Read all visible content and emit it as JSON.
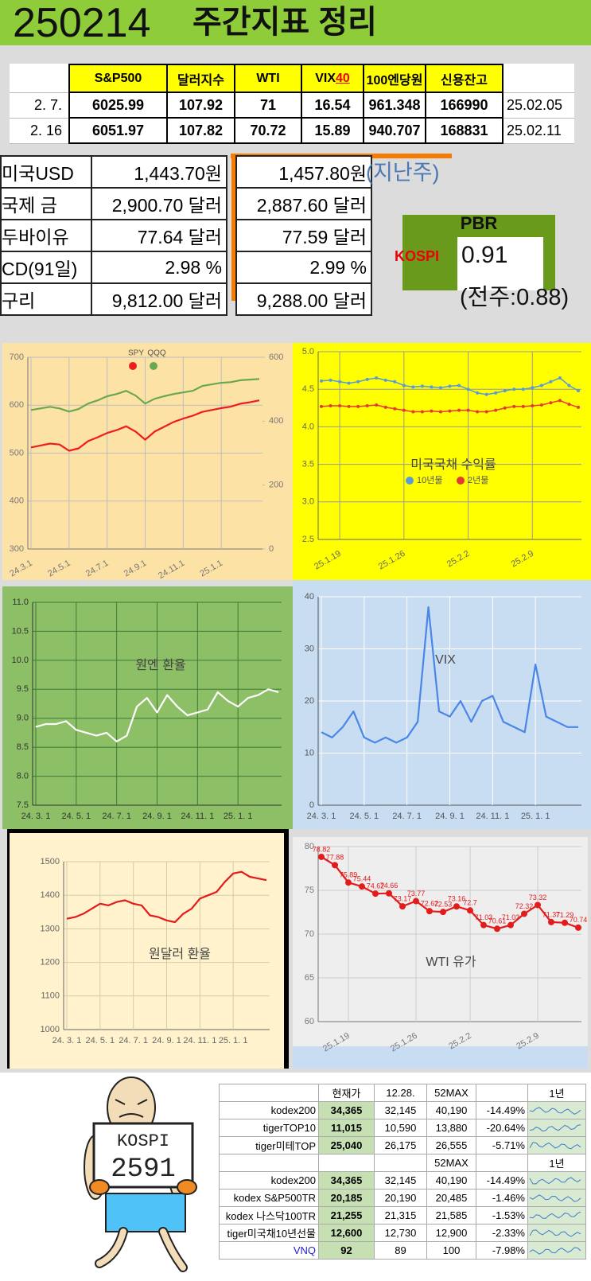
{
  "header": {
    "date": "250214",
    "title": "주간지표 정리"
  },
  "summary_table": {
    "headers": [
      "S&P500",
      "달러지수",
      "WTI",
      {
        "text": "VIX",
        "level": "40"
      },
      "100엔당원",
      "신용잔고"
    ],
    "rows": [
      {
        "label": "2. 7.",
        "cells": [
          "6025.99",
          "107.92",
          "71",
          "16.54",
          "961.348",
          "166990"
        ],
        "date": "25.02.05"
      },
      {
        "label": "2. 16",
        "cells": [
          "6051.97",
          "107.82",
          "70.72",
          "15.89",
          "940.707",
          "168831"
        ],
        "date": "25.02.11"
      }
    ]
  },
  "price_table": {
    "note": "(지난주)",
    "rows": [
      [
        "미국USD",
        "1,443.70원",
        "1,457.80원"
      ],
      [
        "국제 금",
        "2,900.70 달러",
        "2,887.60 달러"
      ],
      [
        "두바이유",
        "77.64 달러",
        "77.59 달러"
      ],
      [
        "CD(91일)",
        "2.98 %",
        "2.99 %"
      ],
      [
        "구리",
        "9,812.00 달러",
        "9,288.00 달러"
      ]
    ]
  },
  "pbr": {
    "title": "PBR",
    "index": "KOSPI",
    "value": "0.91",
    "previous": "(전주:0.88)"
  },
  "chart_data": [
    {
      "type": "line",
      "categories": [
        "24.3.1",
        null,
        null,
        null,
        "24.5.1",
        null,
        null,
        null,
        "24.7.1",
        null,
        null,
        null,
        "24.9.1",
        null,
        null,
        null,
        "24.11.1",
        null,
        null,
        null,
        "25.1.1",
        null,
        null,
        null,
        null
      ],
      "ylim": [
        300,
        700
      ],
      "yticks": [
        300,
        400,
        500,
        600,
        700
      ],
      "y2lim": [
        0,
        600
      ],
      "y2ticks": [
        0,
        200,
        400,
        600
      ],
      "grid": true,
      "series": [
        {
          "name": "SPY",
          "color": "#ee1c1c",
          "values": [
            512,
            516,
            520,
            518,
            505,
            510,
            525,
            533,
            542,
            548,
            556,
            545,
            528,
            545,
            555,
            565,
            572,
            578,
            586,
            590,
            594,
            597,
            603,
            606,
            610
          ]
        },
        {
          "name": "QQQ",
          "color": "#6aa84f",
          "axis": "y2",
          "values": [
            435,
            440,
            445,
            440,
            430,
            438,
            455,
            465,
            478,
            485,
            495,
            480,
            455,
            470,
            478,
            485,
            490,
            495,
            510,
            515,
            520,
            522,
            528,
            530,
            532
          ]
        }
      ]
    },
    {
      "type": "line",
      "title": "미국국채 수익률",
      "categories": [
        null,
        null,
        "25.1.19",
        null,
        null,
        null,
        null,
        null,
        null,
        "25.1.26",
        null,
        null,
        null,
        null,
        null,
        null,
        "25.2.2",
        null,
        null,
        null,
        null,
        null,
        null,
        "25.2.9",
        null,
        null,
        null,
        null,
        null
      ],
      "ylim": [
        2.5,
        5.0
      ],
      "yticks": [
        2.5,
        {
          "value": 3,
          "label": "3.0"
        },
        3.5,
        {
          "value": 4,
          "label": "4.0"
        },
        4.5,
        {
          "value": 5,
          "label": "5.0"
        }
      ],
      "grid": true,
      "markers": true,
      "series": [
        {
          "name": "10년물",
          "color": "#5b9bd5",
          "values": [
            4.61,
            4.62,
            4.6,
            4.58,
            4.6,
            4.63,
            4.65,
            4.62,
            4.6,
            4.55,
            4.53,
            4.54,
            4.53,
            4.52,
            4.54,
            4.55,
            4.5,
            4.45,
            4.43,
            4.45,
            4.48,
            4.5,
            4.5,
            4.52,
            4.55,
            4.6,
            4.65,
            4.55,
            4.48
          ]
        },
        {
          "name": "2년물",
          "color": "#e53935",
          "values": [
            4.27,
            4.28,
            4.28,
            4.27,
            4.27,
            4.28,
            4.29,
            4.26,
            4.24,
            4.22,
            4.2,
            4.2,
            4.21,
            4.2,
            4.21,
            4.22,
            4.22,
            4.2,
            4.2,
            4.22,
            4.25,
            4.27,
            4.27,
            4.28,
            4.29,
            4.32,
            4.35,
            4.3,
            4.26
          ]
        }
      ]
    },
    {
      "type": "line",
      "title": "원엔 환율",
      "categories": [
        "24. 3. 1",
        null,
        null,
        null,
        "24. 5. 1",
        null,
        null,
        null,
        "24. 7. 1",
        null,
        null,
        null,
        "24. 9. 1",
        null,
        null,
        null,
        "24. 11. 1",
        null,
        null,
        null,
        "25. 1. 1",
        null,
        null,
        null,
        null
      ],
      "ylim": [
        7.5,
        11.0
      ],
      "yticks": [
        7.5,
        {
          "value": 8,
          "label": "8.0"
        },
        8.5,
        {
          "value": 9,
          "label": "9.0"
        },
        9.5,
        {
          "value": 10,
          "label": "10.0"
        },
        10.5,
        {
          "value": 11,
          "label": "11.0"
        }
      ],
      "grid": true,
      "series": [
        {
          "name": "원엔",
          "color": "#ffffff",
          "values": [
            8.85,
            8.9,
            8.9,
            8.95,
            8.8,
            8.75,
            8.7,
            8.75,
            8.6,
            8.7,
            9.2,
            9.35,
            9.1,
            9.4,
            9.2,
            9.05,
            9.1,
            9.15,
            9.45,
            9.3,
            9.2,
            9.35,
            9.4,
            9.5,
            9.45
          ]
        }
      ]
    },
    {
      "type": "line",
      "title": "VIX",
      "categories": [
        "24. 3. 1",
        null,
        null,
        null,
        "24. 5. 1",
        null,
        null,
        null,
        "24. 7. 1",
        null,
        null,
        null,
        "24. 9. 1",
        null,
        null,
        null,
        "24. 11. 1",
        null,
        null,
        null,
        "25. 1. 1",
        null,
        null,
        null,
        null
      ],
      "ylim": [
        0,
        40
      ],
      "yticks": [
        0,
        10,
        20,
        30,
        40
      ],
      "grid": true,
      "series": [
        {
          "name": "VIX",
          "color": "#4a86e8",
          "values": [
            14,
            13,
            15,
            18,
            13,
            12,
            13,
            12,
            13,
            16,
            38,
            18,
            17,
            20,
            16,
            20,
            21,
            16,
            15,
            14,
            27,
            17,
            16,
            15,
            15
          ]
        }
      ]
    },
    {
      "type": "line",
      "title": "원달러 환율",
      "categories": [
        "24. 3. 1",
        null,
        null,
        null,
        "24. 5. 1",
        null,
        null,
        null,
        "24. 7. 1",
        null,
        null,
        null,
        "24. 9. 1",
        null,
        null,
        null,
        "24. 11. 1",
        null,
        null,
        null,
        "25. 1. 1",
        null,
        null,
        null,
        null
      ],
      "ylim": [
        1000,
        1500
      ],
      "yticks": [
        1000,
        1100,
        1200,
        1300,
        1400,
        1500
      ],
      "grid": true,
      "series": [
        {
          "name": "원달러",
          "color": "#e31b1b",
          "values": [
            1330,
            1335,
            1345,
            1360,
            1375,
            1370,
            1380,
            1385,
            1375,
            1370,
            1340,
            1335,
            1325,
            1320,
            1345,
            1360,
            1390,
            1400,
            1410,
            1440,
            1465,
            1470,
            1455,
            1450,
            1445
          ]
        }
      ]
    },
    {
      "type": "line",
      "title": "WTI 유가",
      "categories": [
        null,
        null,
        "25.1.19",
        null,
        null,
        null,
        null,
        "25.1.26",
        null,
        null,
        null,
        "25.2.2",
        null,
        null,
        null,
        null,
        "25.2.9",
        null,
        null,
        null
      ],
      "ylim": [
        60,
        80
      ],
      "yticks": [
        60,
        65,
        70,
        75,
        80
      ],
      "grid": true,
      "markers": true,
      "data_labels": true,
      "series": [
        {
          "name": "WTI",
          "color": "#e31b1b",
          "values": [
            78.82,
            77.88,
            75.89,
            75.44,
            74.62,
            74.66,
            73.17,
            73.77,
            72.62,
            72.53,
            73.16,
            72.7,
            71.03,
            70.61,
            71.03,
            72.32,
            73.32,
            71.37,
            71.29,
            70.74
          ]
        }
      ]
    }
  ],
  "cartoon": {
    "sign_title": "KOSPI",
    "sign_value": "2591"
  },
  "etf_table": {
    "sections": [
      {
        "header": [
          null,
          "현재가",
          "12.28.",
          "52MAX",
          null,
          "1년"
        ],
        "rows": [
          [
            "kodex200",
            "34,365",
            "32,145",
            "40,190",
            "-14.49%"
          ],
          [
            "tigerTOP10",
            "11,015",
            "10,590",
            "13,880",
            "-20.64%"
          ],
          [
            "tiger미테TOP",
            "25,040",
            "26,175",
            "26,555",
            "-5.71%"
          ]
        ]
      },
      {
        "header": [
          null,
          null,
          null,
          "52MAX",
          null,
          "1년"
        ],
        "rows": [
          [
            "kodex200",
            "34,365",
            "32,145",
            "40,190",
            "-14.49%"
          ],
          [
            "kodex S&P500TR",
            "20,185",
            "20,190",
            "20,485",
            "-1.46%"
          ],
          [
            "kodex 나스닥100TR",
            "21,255",
            "21,315",
            "21,585",
            "-1.53%"
          ],
          [
            "tiger미국채10년선물",
            "12,600",
            "12,730",
            "12,900",
            "-2.33%"
          ],
          [
            "VNQ",
            "92",
            "89",
            "100",
            "-7.98%"
          ]
        ]
      }
    ]
  }
}
